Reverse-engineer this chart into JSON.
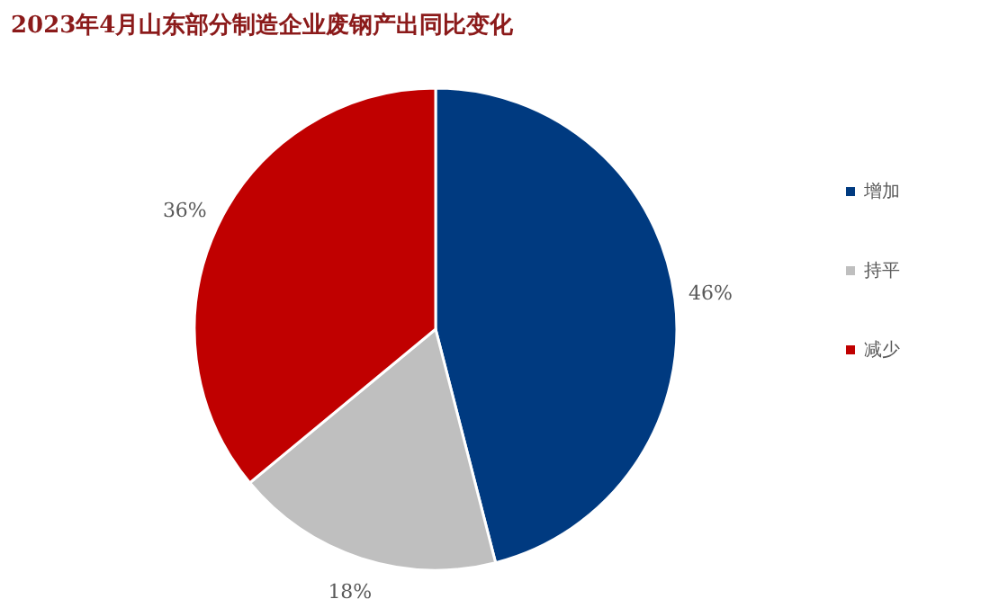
{
  "chart_data": {
    "type": "pie",
    "title": "2023年4月山东部分制造企业废钢产出同比变化",
    "categories": [
      "增加",
      "持平",
      "减少"
    ],
    "values": [
      46,
      18,
      36
    ],
    "colors": [
      "#003a80",
      "#bfbfbf",
      "#c00000"
    ],
    "value_labels": [
      "46%",
      "18%",
      "36%"
    ],
    "legend": "right"
  }
}
